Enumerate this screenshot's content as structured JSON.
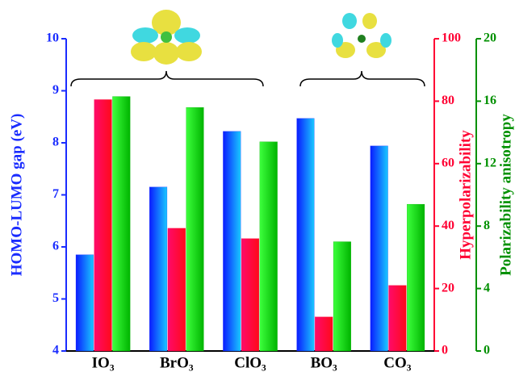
{
  "chart_data": {
    "type": "bar",
    "categories": [
      "IO₃",
      "BrO₃",
      "ClO₃",
      "BO₃",
      "CO₃"
    ],
    "series": [
      {
        "name": "HOMO-LUMO gap (eV)",
        "color": "#1a2cff",
        "values": [
          5.85,
          7.15,
          8.22,
          8.47,
          7.94
        ]
      },
      {
        "name": "Hyperpolarizability",
        "color": "#ff0033",
        "axis": "y2",
        "values": [
          80.5,
          39.3,
          36,
          10.9,
          21
        ]
      },
      {
        "name": "Polarizability anisotropy",
        "color": "#00b000",
        "axis": "y3",
        "values": [
          16.3,
          15.6,
          13.4,
          7.0,
          9.4
        ]
      }
    ],
    "ylabel": "HOMO-LUMO gap (eV)",
    "ylim": [
      4,
      10
    ],
    "yticks": [
      4,
      5,
      6,
      7,
      8,
      9,
      10
    ],
    "y2label": "Hyperpolarizability",
    "y2lim": [
      0,
      100
    ],
    "y2ticks": [
      0,
      20,
      40,
      60,
      80,
      100
    ],
    "y3label": "Polarizability anisotropy",
    "y3lim": [
      0,
      20
    ],
    "y3ticks": [
      0,
      4,
      8,
      12,
      16,
      20
    ]
  }
}
